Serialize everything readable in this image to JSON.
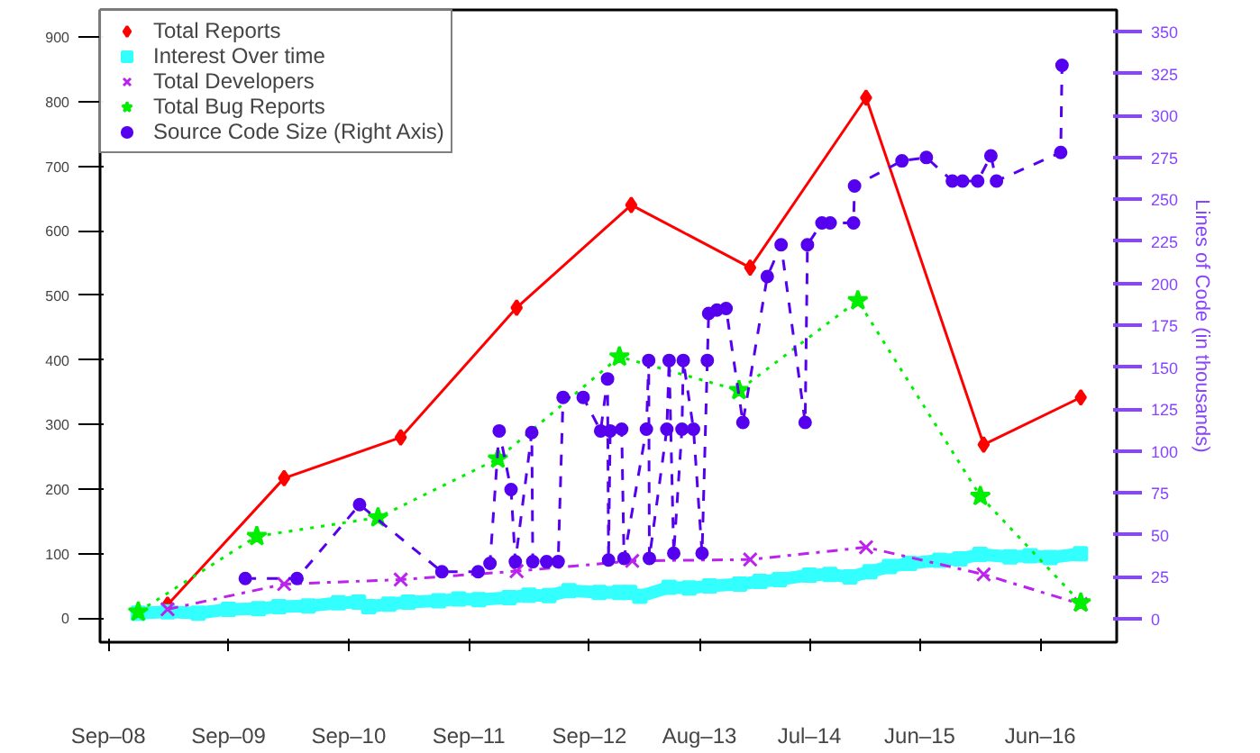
{
  "chart_data": {
    "type": "line",
    "y2label": "Lines of Code (in thousands)",
    "xlim": [
      "2008-08-07",
      "2017-01-19"
    ],
    "xticks": [
      {
        "value": "2008-09-01",
        "label": "Sep–08"
      },
      {
        "value": "2009-09-01",
        "label": "Sep–09"
      },
      {
        "value": "2010-09-01",
        "label": "Sep–10"
      },
      {
        "value": "2011-09-01",
        "label": "Sep–11"
      },
      {
        "value": "2012-09-01",
        "label": "Sep–12"
      },
      {
        "value": "2013-08-01",
        "label": "Aug–13"
      },
      {
        "value": "2014-07-01",
        "label": "Jul–14"
      },
      {
        "value": "2015-06-01",
        "label": "Jun–15"
      },
      {
        "value": "2016-06-01",
        "label": "Jun–16"
      }
    ],
    "ylim": [
      -37,
      942
    ],
    "yticks": [
      0,
      100,
      200,
      300,
      400,
      500,
      600,
      700,
      800,
      900
    ],
    "y2lim": [
      -14,
      363
    ],
    "y2ticks": [
      0,
      25,
      50,
      75,
      100,
      125,
      150,
      175,
      200,
      225,
      250,
      275,
      300,
      325,
      350
    ],
    "grid": false,
    "legend": "top left",
    "series": [
      {
        "name": "Total Reports",
        "color": "#ff0000",
        "marker": "diamond",
        "line_style": "solid",
        "x": [
          "2009-02-28",
          "2010-02-17",
          "2011-02-06",
          "2012-01-24",
          "2013-01-06",
          "2014-01-02",
          "2014-12-20",
          "2015-12-12",
          "2016-10-02"
        ],
        "values": [
          21,
          217,
          280,
          481,
          640,
          543,
          806,
          269,
          342
        ]
      },
      {
        "name": "Interest Over time",
        "color": "#33ffff",
        "marker": "square",
        "line_style": "solid",
        "x": [
          "2008-12",
          "2009-03",
          "2009-06",
          "2009-09",
          "2009-12",
          "2010-02",
          "2010-05",
          "2010-08",
          "2010-10",
          "2010-11",
          "2011-01",
          "2011-03",
          "2011-06",
          "2011-08",
          "2011-10",
          "2012-01",
          "2012-03",
          "2012-05",
          "2012-07",
          "2012-10",
          "2012-12",
          "2013-01",
          "2013-02",
          "2013-05",
          "2013-07",
          "2013-09",
          "2013-12",
          "2014-02",
          "2014-04",
          "2014-07",
          "2014-09",
          "2014-11",
          "2015-01",
          "2015-03",
          "2015-05",
          "2015-08",
          "2015-10",
          "2015-12",
          "2016-03",
          "2016-05",
          "2016-07",
          "2016-10"
        ],
        "values": [
          8,
          10,
          8,
          14,
          15,
          18,
          19,
          24,
          25,
          18,
          22,
          25,
          27,
          30,
          29,
          32,
          36,
          35,
          43,
          40,
          40,
          40,
          34,
          48,
          47,
          50,
          53,
          57,
          60,
          67,
          68,
          64,
          72,
          80,
          85,
          90,
          92,
          99,
          95,
          97,
          94,
          100
        ]
      },
      {
        "name": "Total Developers",
        "color": "#bb22ee",
        "marker": "cross",
        "line_style": "dashdot",
        "x": [
          "2009-02-28",
          "2010-02-17",
          "2011-02-06",
          "2012-01-24",
          "2013-01-09",
          "2014-01-02",
          "2014-12-20",
          "2015-12-12",
          "2016-10-02"
        ],
        "values": [
          14,
          53,
          60,
          73,
          89,
          91,
          110,
          68,
          22
        ]
      },
      {
        "name": "Total Bug Reports",
        "color": "#00ee00",
        "marker": "star",
        "line_style": "dotted",
        "x": [
          "2008-12-01",
          "2009-11-26",
          "2010-11-29",
          "2011-11-28",
          "2012-12-01",
          "2013-11-29",
          "2014-11-25",
          "2015-12-02",
          "2016-10-02"
        ],
        "values": [
          10,
          127,
          156,
          247,
          405,
          353,
          492,
          189,
          24
        ]
      },
      {
        "name": "Source Code Size (Right Axis)",
        "color": "#5500ee",
        "marker": "circle",
        "line_style": "dashed",
        "axis": "y2",
        "x": [
          "2009-10-22",
          "2010-03-28",
          "2010-10-04",
          "2011-06-11",
          "2011-09-29",
          "2011-11-04",
          "2011-12-02",
          "2012-01-07",
          "2012-01-20",
          "2012-03-10",
          "2012-03-13",
          "2012-04-24",
          "2012-05-29",
          "2012-06-13",
          "2012-08-13",
          "2012-10-05",
          "2012-10-26",
          "2012-10-29",
          "2012-11-03",
          "2012-12-08",
          "2012-12-15",
          "2013-02-21",
          "2013-02-28",
          "2013-03-02",
          "2013-04-24",
          "2013-05-01",
          "2013-05-15",
          "2013-06-09",
          "2013-06-13",
          "2013-07-14",
          "2013-08-09",
          "2013-08-25",
          "2013-08-29",
          "2013-09-23",
          "2013-10-21",
          "2013-12-11",
          "2014-02-23",
          "2014-04-06",
          "2014-06-18",
          "2014-06-25",
          "2014-08-08",
          "2014-09-02",
          "2014-11-12",
          "2014-11-15",
          "2015-04-08",
          "2015-06-21",
          "2015-09-08",
          "2015-10-09",
          "2015-11-24",
          "2016-01-03",
          "2016-01-20",
          "2016-08-02",
          "2016-08-06"
        ],
        "values": [
          24,
          24,
          68,
          28,
          28,
          33,
          112,
          77,
          34,
          111,
          34,
          34,
          34,
          132,
          132,
          112,
          143,
          35,
          112,
          113,
          36,
          113,
          154,
          36,
          113,
          154,
          39,
          113,
          154,
          113,
          39,
          154,
          182,
          184,
          185,
          117,
          204,
          223,
          117,
          223,
          236,
          236,
          236,
          258,
          273,
          275,
          261,
          261,
          261,
          276,
          261,
          278,
          330
        ]
      }
    ]
  }
}
